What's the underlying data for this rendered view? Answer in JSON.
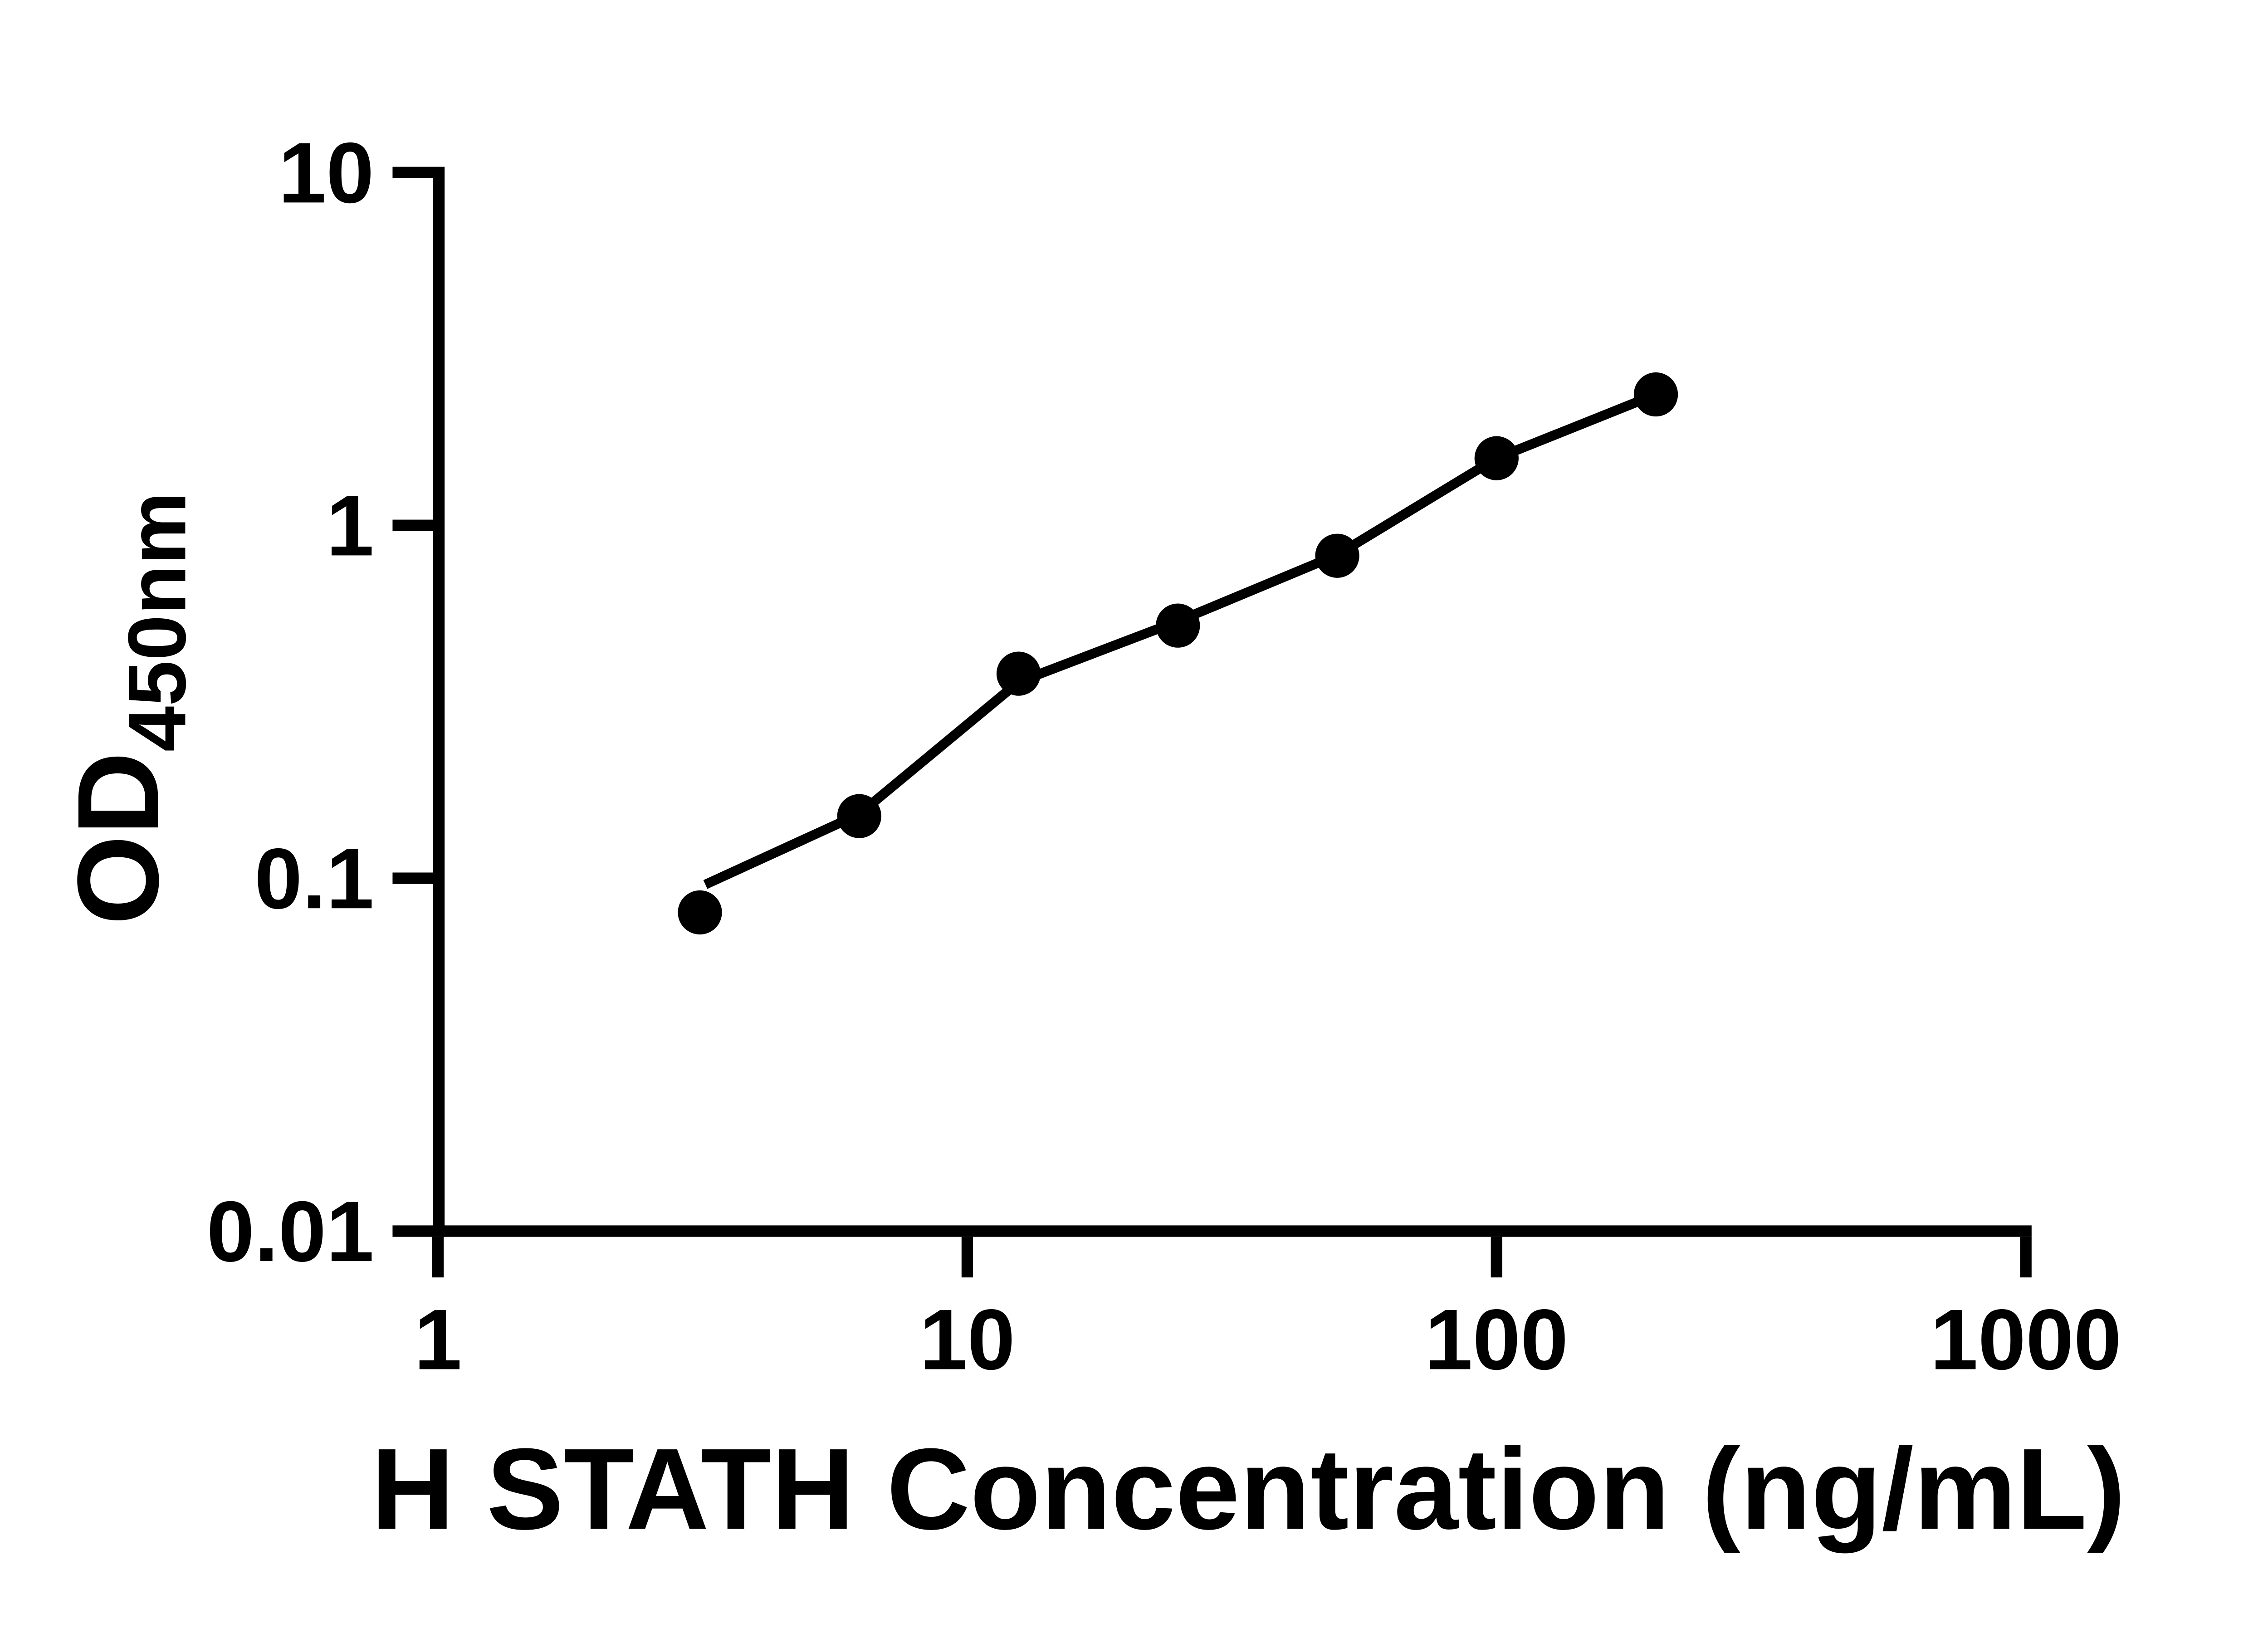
{
  "page": {
    "background": "#ffffff",
    "foreground": "#000000"
  },
  "chart_data": {
    "type": "scatter",
    "title": "",
    "xlabel": "H STATH Concentration (ng/mL)",
    "ylabel": "OD450nm",
    "ylabel_main": "OD",
    "ylabel_sub": "450nm",
    "x_scale": "log10",
    "y_scale": "log10",
    "xlim": [
      1,
      1000
    ],
    "ylim": [
      0.01,
      10
    ],
    "grid": false,
    "legend_position": "none",
    "x_ticks": [
      {
        "value": 1,
        "label": "1"
      },
      {
        "value": 10,
        "label": "10"
      },
      {
        "value": 100,
        "label": "100"
      },
      {
        "value": 1000,
        "label": "1000"
      }
    ],
    "y_ticks": [
      {
        "value": 10,
        "label": "10"
      },
      {
        "value": 1,
        "label": "1"
      },
      {
        "value": 0.1,
        "label": "0.1"
      },
      {
        "value": 0.01,
        "label": "0.01"
      }
    ],
    "series": [
      {
        "name": "H STATH standard points",
        "type": "scatter",
        "marker": "filled-circle",
        "color": "#000000",
        "points": [
          {
            "x": 3.125,
            "y": 0.08
          },
          {
            "x": 6.25,
            "y": 0.15
          },
          {
            "x": 12.5,
            "y": 0.38
          },
          {
            "x": 25,
            "y": 0.52
          },
          {
            "x": 50,
            "y": 0.82
          },
          {
            "x": 100,
            "y": 1.55
          },
          {
            "x": 200,
            "y": 2.35
          }
        ]
      },
      {
        "name": "fitted standard curve",
        "type": "line",
        "color": "#000000",
        "points": [
          {
            "x": 3.2,
            "y": 0.096
          },
          {
            "x": 6.25,
            "y": 0.152
          },
          {
            "x": 12.5,
            "y": 0.36
          },
          {
            "x": 25,
            "y": 0.535
          },
          {
            "x": 50,
            "y": 0.825
          },
          {
            "x": 100,
            "y": 1.55
          },
          {
            "x": 200,
            "y": 2.35
          }
        ]
      }
    ]
  }
}
